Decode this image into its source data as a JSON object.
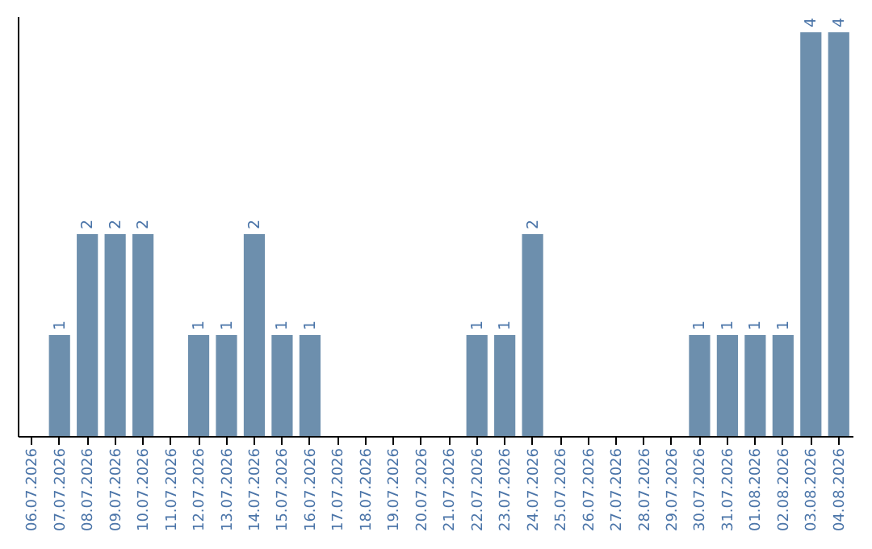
{
  "chart_data": {
    "type": "bar",
    "categories": [
      "06.07.2026",
      "07.07.2026",
      "08.07.2026",
      "09.07.2026",
      "10.07.2026",
      "11.07.2026",
      "12.07.2026",
      "13.07.2026",
      "14.07.2026",
      "15.07.2026",
      "16.07.2026",
      "17.07.2026",
      "18.07.2026",
      "19.07.2026",
      "20.07.2026",
      "21.07.2026",
      "22.07.2026",
      "23.07.2026",
      "24.07.2026",
      "25.07.2026",
      "26.07.2026",
      "27.07.2026",
      "28.07.2026",
      "29.07.2026",
      "30.07.2026",
      "31.07.2026",
      "01.08.2026",
      "02.08.2026",
      "03.08.2026",
      "04.08.2026"
    ],
    "values": [
      0,
      1,
      2,
      2,
      2,
      0,
      1,
      1,
      2,
      1,
      1,
      0,
      0,
      0,
      0,
      0,
      1,
      1,
      2,
      0,
      0,
      0,
      0,
      0,
      1,
      1,
      1,
      1,
      4,
      4
    ],
    "value_labels": [
      null,
      "1",
      "2",
      "2",
      "2",
      null,
      "1",
      "1",
      "2",
      "1",
      "1",
      null,
      null,
      null,
      null,
      null,
      "1",
      "1",
      "2",
      null,
      null,
      null,
      null,
      null,
      "1",
      "1",
      "1",
      "1",
      "4",
      "4"
    ],
    "color": "#6d8fad",
    "tick_labels": "x"
  }
}
